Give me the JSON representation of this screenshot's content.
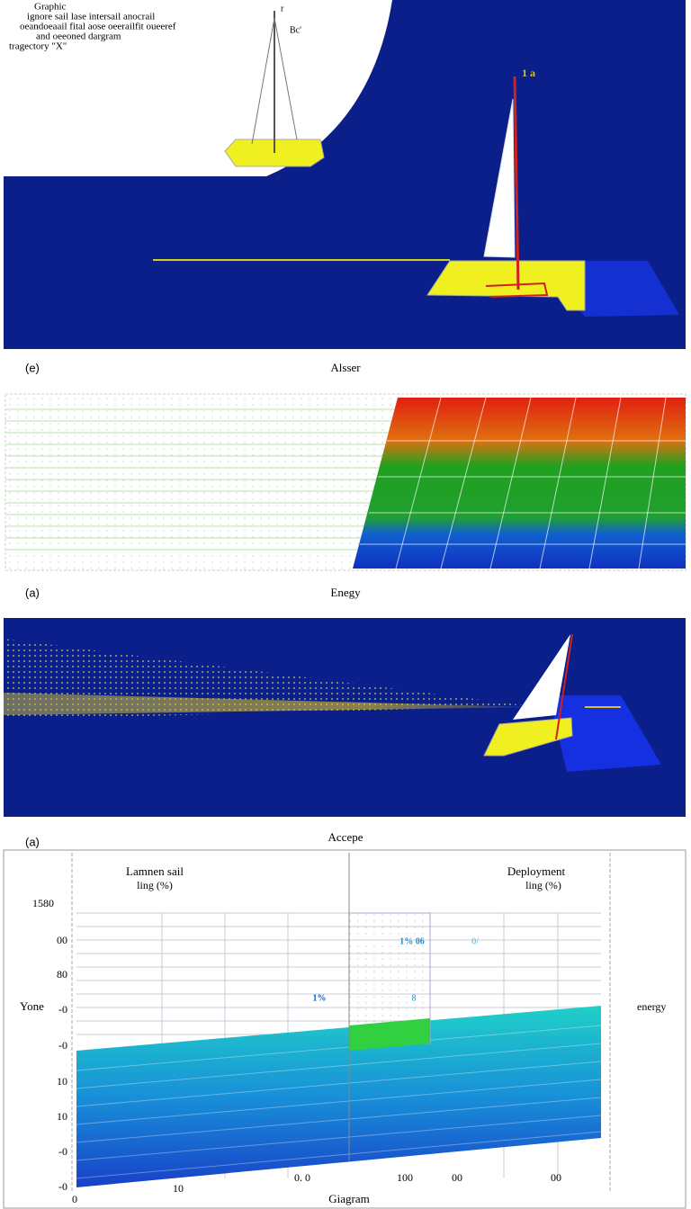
{
  "top_panel": {
    "heading": "Graphic",
    "lines": [
      "ignore sail lase intersail anocrail",
      "oeandoeaail fital aose oeerailfit oueeref",
      "and oeeoned dargram",
      "tragectory \"X\""
    ],
    "labels": [
      "r",
      "Bc'",
      "1 a"
    ]
  },
  "captions": [
    {
      "tag": "(e)",
      "title": "Alsser"
    },
    {
      "tag": "(a)",
      "title": "Enegy"
    },
    {
      "tag": "(a)",
      "title": "Accepe"
    }
  ],
  "bottom_chart": {
    "left_label": [
      "Lamnen sail",
      "ling (%)"
    ],
    "right_label": [
      "Deployment",
      "ling (%)"
    ],
    "y_axis_title": "Yone",
    "right_axis_title": "energy",
    "y_labels": [
      "1580",
      "00",
      "80",
      "-0",
      "-0",
      "10",
      "10",
      "-0",
      "-0"
    ],
    "x_labels": [
      "0",
      "10",
      "0. 0",
      "100",
      "00",
      "00"
    ],
    "x_axis_title": "Giagram",
    "annotations": [
      "1% 06",
      "0/",
      "1%",
      "8"
    ]
  }
}
